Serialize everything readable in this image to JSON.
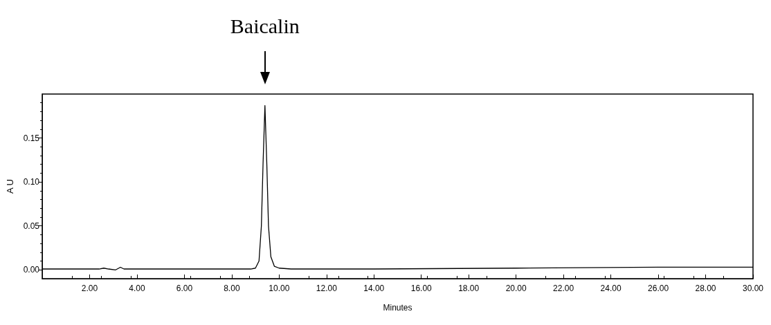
{
  "chart_data": {
    "type": "line",
    "xlabel": "Minutes",
    "ylabel": "A U",
    "annotations": [
      "Baicalin"
    ],
    "xlim": [
      0,
      30
    ],
    "ylim": [
      -0.01,
      0.2
    ],
    "xticks": [
      {
        "value": 2,
        "label": "2.00"
      },
      {
        "value": 4,
        "label": "4.00"
      },
      {
        "value": 6,
        "label": "6.00"
      },
      {
        "value": 8,
        "label": "8.00"
      },
      {
        "value": 10,
        "label": "10.00"
      },
      {
        "value": 12,
        "label": "12.00"
      },
      {
        "value": 14,
        "label": "14.00"
      },
      {
        "value": 16,
        "label": "16.00"
      },
      {
        "value": 18,
        "label": "18.00"
      },
      {
        "value": 20,
        "label": "20.00"
      },
      {
        "value": 22,
        "label": "22.00"
      },
      {
        "value": 24,
        "label": "24.00"
      },
      {
        "value": 26,
        "label": "26.00"
      },
      {
        "value": 28,
        "label": "28.00"
      },
      {
        "value": 30,
        "label": "30.00"
      }
    ],
    "yticks": [
      {
        "value": 0,
        "label": "0.00"
      },
      {
        "value": 0.05,
        "label": "0.05"
      },
      {
        "value": 0.1,
        "label": "0.10"
      },
      {
        "value": 0.15,
        "label": "0.15"
      }
    ],
    "grid": false,
    "marker": "none",
    "line_style": "solid",
    "series": [
      {
        "color": "#000000",
        "x": [
          0,
          2.4,
          2.6,
          2.8,
          3.1,
          3.3,
          3.45,
          6,
          8.8,
          9.0,
          9.15,
          9.25,
          9.32,
          9.4,
          9.48,
          9.55,
          9.65,
          9.8,
          10.0,
          10.5,
          14,
          20,
          26,
          30
        ],
        "values": [
          0.001,
          0.001,
          0.002,
          0.001,
          0.0,
          0.003,
          0.001,
          0.001,
          0.001,
          0.002,
          0.01,
          0.05,
          0.12,
          0.187,
          0.12,
          0.05,
          0.015,
          0.004,
          0.002,
          0.001,
          0.001,
          0.002,
          0.003,
          0.003
        ]
      }
    ]
  }
}
